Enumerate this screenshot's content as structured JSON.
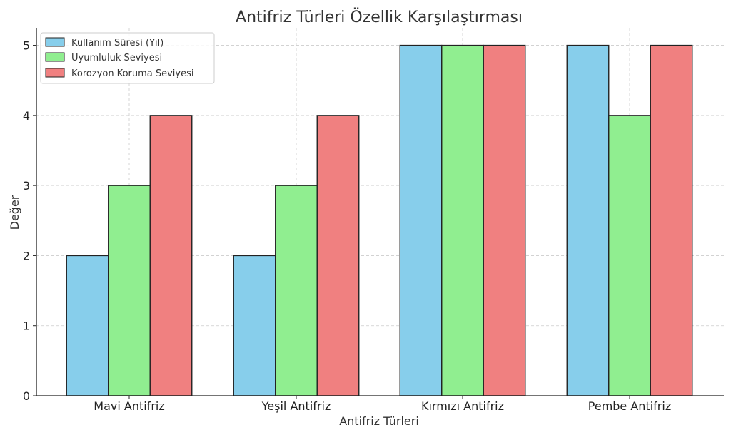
{
  "chart_data": {
    "type": "bar",
    "title": "Antifriz Türleri Özellik Karşılaştırması",
    "xlabel": "Antifriz Türleri",
    "ylabel": "Değer",
    "categories": [
      "Mavi Antifriz",
      "Yeşil Antifriz",
      "Kırmızı Antifriz",
      "Pembe Antifriz"
    ],
    "series": [
      {
        "name": "Kullanım Süresi (Yıl)",
        "values": [
          2,
          2,
          5,
          5
        ],
        "color": "#87CEEB"
      },
      {
        "name": "Uyumluluk Seviyesi",
        "values": [
          3,
          3,
          5,
          4
        ],
        "color": "#90EE90"
      },
      {
        "name": "Korozyon Koruma Seviyesi",
        "values": [
          4,
          4,
          5,
          5
        ],
        "color": "#F08080"
      }
    ],
    "ylim": [
      0,
      5.25
    ],
    "yticks": [
      0,
      1,
      2,
      3,
      4,
      5
    ],
    "grid": true,
    "legend_position": "top-left"
  }
}
